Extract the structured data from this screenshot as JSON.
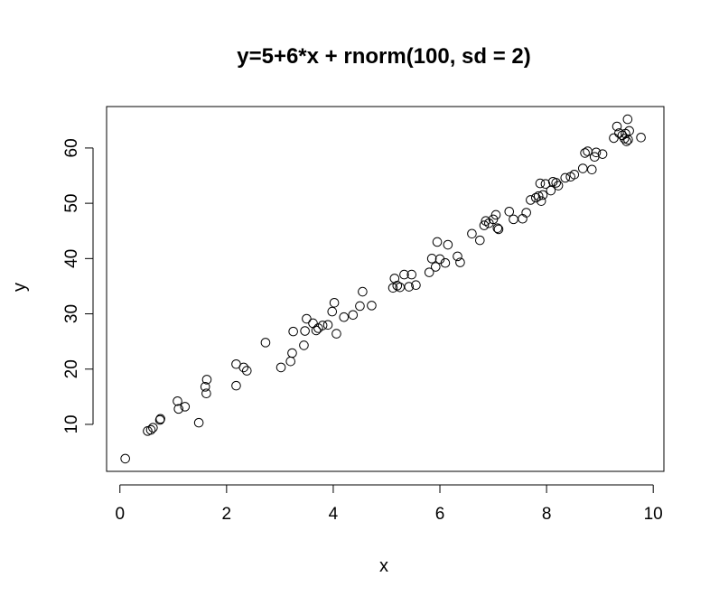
{
  "chart_data": {
    "type": "scatter",
    "title": "y=5+6*x + rnorm(100, sd = 2)",
    "xlabel": "x",
    "ylabel": "y",
    "xlim": [
      -0.25,
      10.2
    ],
    "ylim": [
      1.5,
      67.5
    ],
    "xticks": [
      0,
      2,
      4,
      6,
      8,
      10
    ],
    "yticks": [
      10,
      20,
      30,
      40,
      50,
      60
    ],
    "xtick_labels": [
      "0",
      "2",
      "4",
      "6",
      "8",
      "10"
    ],
    "ytick_labels": [
      "10",
      "20",
      "30",
      "40",
      "50",
      "60"
    ],
    "grid": false,
    "marker": "open-circle",
    "color": "#000000",
    "points": [
      [
        0.1,
        3.8
      ],
      [
        0.52,
        8.8
      ],
      [
        0.58,
        9.0
      ],
      [
        0.62,
        9.4
      ],
      [
        0.75,
        10.8
      ],
      [
        0.76,
        11.0
      ],
      [
        1.08,
        14.2
      ],
      [
        1.1,
        12.8
      ],
      [
        1.22,
        13.2
      ],
      [
        1.48,
        10.3
      ],
      [
        1.6,
        16.8
      ],
      [
        1.62,
        15.6
      ],
      [
        1.63,
        18.1
      ],
      [
        2.18,
        20.9
      ],
      [
        2.18,
        17.0
      ],
      [
        2.32,
        20.3
      ],
      [
        2.38,
        19.7
      ],
      [
        2.73,
        24.8
      ],
      [
        3.02,
        20.3
      ],
      [
        3.2,
        21.4
      ],
      [
        3.23,
        22.9
      ],
      [
        3.25,
        26.8
      ],
      [
        3.45,
        24.3
      ],
      [
        3.47,
        26.9
      ],
      [
        3.5,
        29.1
      ],
      [
        3.62,
        28.3
      ],
      [
        3.68,
        27.0
      ],
      [
        3.72,
        27.4
      ],
      [
        3.8,
        27.9
      ],
      [
        3.9,
        28.0
      ],
      [
        3.98,
        30.4
      ],
      [
        4.02,
        32.0
      ],
      [
        4.06,
        26.4
      ],
      [
        4.2,
        29.4
      ],
      [
        4.37,
        29.8
      ],
      [
        4.5,
        31.4
      ],
      [
        4.55,
        34.0
      ],
      [
        4.72,
        31.5
      ],
      [
        5.12,
        34.7
      ],
      [
        5.15,
        36.4
      ],
      [
        5.2,
        35.1
      ],
      [
        5.25,
        34.8
      ],
      [
        5.33,
        37.1
      ],
      [
        5.42,
        34.9
      ],
      [
        5.47,
        37.1
      ],
      [
        5.55,
        35.2
      ],
      [
        5.8,
        37.5
      ],
      [
        5.85,
        40.0
      ],
      [
        5.92,
        38.5
      ],
      [
        5.95,
        43.0
      ],
      [
        6.0,
        39.9
      ],
      [
        6.1,
        39.2
      ],
      [
        6.15,
        42.5
      ],
      [
        6.33,
        40.4
      ],
      [
        6.38,
        39.3
      ],
      [
        6.6,
        44.5
      ],
      [
        6.75,
        43.3
      ],
      [
        6.83,
        46.0
      ],
      [
        6.86,
        46.8
      ],
      [
        6.92,
        46.4
      ],
      [
        7.0,
        47.1
      ],
      [
        7.05,
        47.9
      ],
      [
        7.08,
        45.5
      ],
      [
        7.1,
        45.3
      ],
      [
        7.3,
        48.5
      ],
      [
        7.38,
        47.1
      ],
      [
        7.55,
        47.2
      ],
      [
        7.62,
        48.3
      ],
      [
        7.7,
        50.6
      ],
      [
        7.8,
        51.0
      ],
      [
        7.85,
        51.3
      ],
      [
        7.88,
        53.6
      ],
      [
        7.9,
        50.4
      ],
      [
        7.93,
        51.5
      ],
      [
        7.98,
        53.5
      ],
      [
        8.08,
        52.3
      ],
      [
        8.12,
        53.9
      ],
      [
        8.18,
        53.7
      ],
      [
        8.22,
        53.2
      ],
      [
        8.35,
        54.6
      ],
      [
        8.45,
        54.8
      ],
      [
        8.52,
        55.2
      ],
      [
        8.68,
        56.3
      ],
      [
        8.72,
        59.1
      ],
      [
        8.77,
        59.4
      ],
      [
        8.85,
        56.1
      ],
      [
        8.9,
        58.4
      ],
      [
        8.93,
        59.2
      ],
      [
        9.05,
        58.9
      ],
      [
        9.26,
        61.8
      ],
      [
        9.32,
        63.9
      ],
      [
        9.36,
        62.7
      ],
      [
        9.42,
        62.3
      ],
      [
        9.46,
        61.7
      ],
      [
        9.48,
        62.6
      ],
      [
        9.5,
        61.2
      ],
      [
        9.52,
        65.2
      ],
      [
        9.53,
        61.5
      ],
      [
        9.55,
        63.1
      ],
      [
        9.77,
        61.9
      ]
    ]
  }
}
